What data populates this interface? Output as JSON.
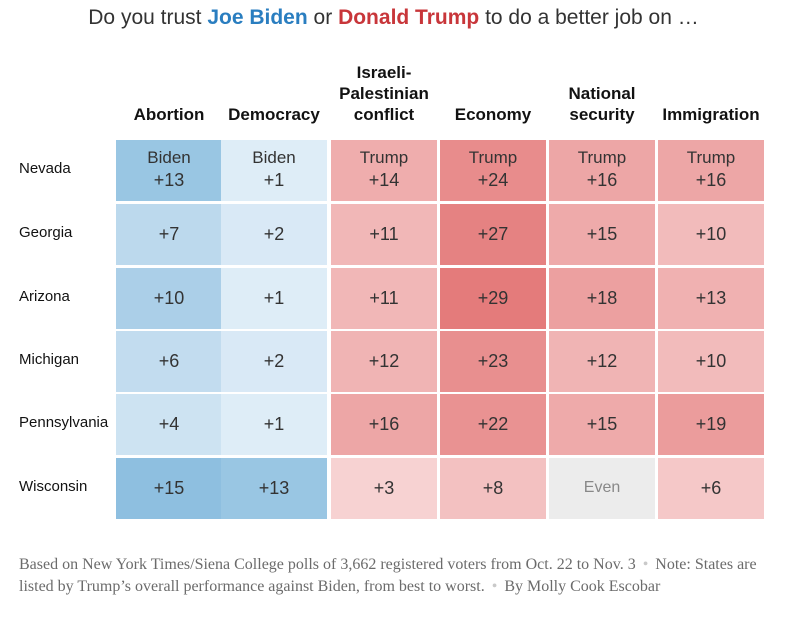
{
  "title": {
    "prefix": "Do you trust",
    "biden": "Joe Biden",
    "mid": "or",
    "trump": "Donald Trump",
    "suffix": "to do a better job on …"
  },
  "colors": {
    "biden": "#2a7ec0",
    "trump": "#c8363a",
    "even": "#ececec"
  },
  "chart_data": {
    "type": "heatmap",
    "columns": [
      {
        "lines": [
          "Abortion"
        ]
      },
      {
        "lines": [
          "Democracy"
        ]
      },
      {
        "lines": [
          "Israeli-",
          "Palestinian",
          "conflict"
        ]
      },
      {
        "lines": [
          "Economy"
        ]
      },
      {
        "lines": [
          "National",
          "security"
        ]
      },
      {
        "lines": [
          "Immigration"
        ]
      }
    ],
    "rows": [
      "Nevada",
      "Georgia",
      "Arizona",
      "Michigan",
      "Pennsylvania",
      "Wisconsin"
    ],
    "cells": [
      [
        {
          "leader": "Biden",
          "margin": 13,
          "label": "+13",
          "lead": "Biden"
        },
        {
          "leader": "Biden",
          "margin": 1,
          "label": "+1",
          "lead": "Biden"
        },
        {
          "leader": "Trump",
          "margin": 14,
          "label": "+14",
          "lead": "Trump"
        },
        {
          "leader": "Trump",
          "margin": 24,
          "label": "+24",
          "lead": "Trump"
        },
        {
          "leader": "Trump",
          "margin": 16,
          "label": "+16",
          "lead": "Trump"
        },
        {
          "leader": "Trump",
          "margin": 16,
          "label": "+16",
          "lead": "Trump"
        }
      ],
      [
        {
          "leader": "Biden",
          "margin": 7,
          "label": "+7"
        },
        {
          "leader": "Biden",
          "margin": 2,
          "label": "+2"
        },
        {
          "leader": "Trump",
          "margin": 11,
          "label": "+11"
        },
        {
          "leader": "Trump",
          "margin": 27,
          "label": "+27"
        },
        {
          "leader": "Trump",
          "margin": 15,
          "label": "+15"
        },
        {
          "leader": "Trump",
          "margin": 10,
          "label": "+10"
        }
      ],
      [
        {
          "leader": "Biden",
          "margin": 10,
          "label": "+10"
        },
        {
          "leader": "Biden",
          "margin": 1,
          "label": "+1"
        },
        {
          "leader": "Trump",
          "margin": 11,
          "label": "+11"
        },
        {
          "leader": "Trump",
          "margin": 29,
          "label": "+29"
        },
        {
          "leader": "Trump",
          "margin": 18,
          "label": "+18"
        },
        {
          "leader": "Trump",
          "margin": 13,
          "label": "+13"
        }
      ],
      [
        {
          "leader": "Biden",
          "margin": 6,
          "label": "+6"
        },
        {
          "leader": "Biden",
          "margin": 2,
          "label": "+2"
        },
        {
          "leader": "Trump",
          "margin": 12,
          "label": "+12"
        },
        {
          "leader": "Trump",
          "margin": 23,
          "label": "+23"
        },
        {
          "leader": "Trump",
          "margin": 12,
          "label": "+12"
        },
        {
          "leader": "Trump",
          "margin": 10,
          "label": "+10"
        }
      ],
      [
        {
          "leader": "Biden",
          "margin": 4,
          "label": "+4"
        },
        {
          "leader": "Biden",
          "margin": 1,
          "label": "+1"
        },
        {
          "leader": "Trump",
          "margin": 16,
          "label": "+16"
        },
        {
          "leader": "Trump",
          "margin": 22,
          "label": "+22"
        },
        {
          "leader": "Trump",
          "margin": 15,
          "label": "+15"
        },
        {
          "leader": "Trump",
          "margin": 19,
          "label": "+19"
        }
      ],
      [
        {
          "leader": "Biden",
          "margin": 15,
          "label": "+15"
        },
        {
          "leader": "Biden",
          "margin": 13,
          "label": "+13"
        },
        {
          "leader": "Trump",
          "margin": 3,
          "label": "+3"
        },
        {
          "leader": "Trump",
          "margin": 8,
          "label": "+8"
        },
        {
          "leader": "Even",
          "margin": 0,
          "label": "Even"
        },
        {
          "leader": "Trump",
          "margin": 6,
          "label": "+6"
        }
      ]
    ]
  },
  "note": {
    "source": "Based on New York Times/Siena College polls of 3,662 registered voters from Oct. 22 to Nov. 3",
    "separator": "•",
    "note_text": "Note: States are listed by Trump’s overall performance against Biden, from best to worst.",
    "byline": "By Molly Cook Escobar"
  }
}
